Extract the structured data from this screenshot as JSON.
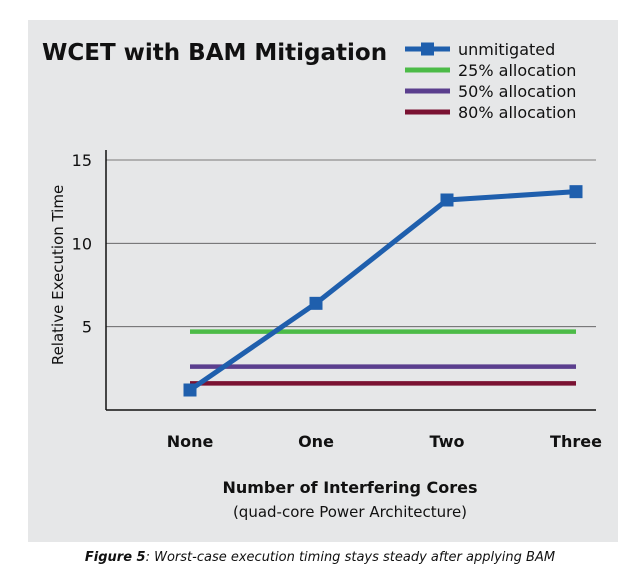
{
  "chart_data": {
    "type": "line",
    "title": "WCET with BAM Mitigation",
    "xlabel": "Number of Interfering Cores",
    "xlabel_sub": "(quad-core Power Architecture)",
    "ylabel": "Relative Execution Time",
    "categories": [
      "None",
      "One",
      "Two",
      "Three"
    ],
    "ylim": [
      0,
      15
    ],
    "yticks": [
      5,
      10,
      15
    ],
    "grid": true,
    "legend_position": "top-right",
    "series": [
      {
        "name": "unmitigated",
        "values": [
          1.2,
          6.4,
          12.6,
          13.1
        ],
        "color": "#1f5fad",
        "markers": true
      },
      {
        "name": "25% allocation",
        "values": [
          4.7,
          4.7,
          4.7,
          4.7
        ],
        "color": "#4cbb47",
        "markers": false
      },
      {
        "name": "50% allocation",
        "values": [
          2.6,
          2.6,
          2.6,
          2.6
        ],
        "color": "#5b3f8e",
        "markers": false
      },
      {
        "name": "80% allocation",
        "values": [
          1.6,
          1.6,
          1.6,
          1.6
        ],
        "color": "#7a1232",
        "markers": false
      }
    ]
  },
  "caption": {
    "label": "Figure 5",
    "text": ": Worst-case execution timing stays steady after applying BAM"
  }
}
